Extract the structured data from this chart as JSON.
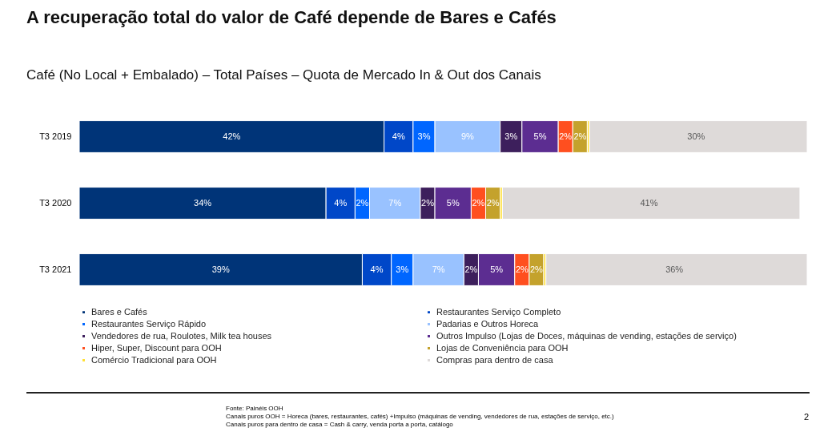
{
  "chart_data": {
    "type": "bar",
    "orientation": "horizontal",
    "stacked": true,
    "title": "A recuperação total do valor de Café depende de Bares e Cafés",
    "subtitle": "Café (No Local + Embalado) – Total Países – Quota de Mercado In & Out dos Canais",
    "categories": [
      "T3 2019",
      "T3 2020",
      "T3 2021"
    ],
    "legend": "bottom",
    "series": [
      {
        "name": "Bares e Cafés",
        "color": "#003478",
        "values": [
          42,
          34,
          39
        ],
        "value_labels": [
          "42%",
          "34%",
          "39%"
        ]
      },
      {
        "name": "Restaurantes Serviço Completo",
        "color": "#0047c8",
        "values": [
          4,
          4,
          4
        ],
        "value_labels": [
          "4%",
          "4%",
          "4%"
        ]
      },
      {
        "name": "Restaurantes Serviço Rápido",
        "color": "#0066ff",
        "values": [
          3,
          2,
          3
        ],
        "value_labels": [
          "3%",
          "2%",
          "3%"
        ]
      },
      {
        "name": "Padarias e Outros Horeca",
        "color": "#99c2ff",
        "values": [
          9,
          7,
          7
        ],
        "value_labels": [
          "9%",
          "7%",
          "7%"
        ]
      },
      {
        "name": "Vendedores de rua, Roulotes, Milk tea houses",
        "color": "#3d1f5c",
        "values": [
          3,
          2,
          2
        ],
        "value_labels": [
          "3%",
          "2%",
          "2%"
        ]
      },
      {
        "name": "Outros Impulso (Lojas de Doces, máquinas de vending, estações de serviço)",
        "color": "#5c2d91",
        "values": [
          5,
          5,
          5
        ],
        "value_labels": [
          "5%",
          "5%",
          "5%"
        ]
      },
      {
        "name": "Hiper, Super, Discount para OOH",
        "color": "#ff4f1f",
        "values": [
          2,
          2,
          2
        ],
        "value_labels": [
          "2%",
          "2%",
          "2%"
        ]
      },
      {
        "name": "Lojas de Conveniência para OOH",
        "color": "#c4a22c",
        "values": [
          2,
          2,
          2
        ],
        "value_labels": [
          "2%",
          "2%",
          "2%"
        ]
      },
      {
        "name": "Comércio Tradicional para OOH",
        "color": "#ffe033",
        "values": [
          0.3,
          0.3,
          0.3
        ],
        "value_labels": [
          null,
          null,
          null
        ]
      },
      {
        "name": "Compras para dentro de casa",
        "color": "#dedad9",
        "values": [
          30,
          41,
          36
        ],
        "value_labels": [
          "30%",
          "41%",
          "36%"
        ]
      }
    ],
    "annotations": [
      "Fonte: Painéis OOH",
      "Canais puros OOH = Horeca (bares, restaurantes, cafés) +Impulso (máquinas de vending, vendedores de rua, estações de serviço, etc.)",
      "Canais puros para dentro de casa = Cash & carry, venda porta a porta, catálogo",
      "2"
    ]
  }
}
